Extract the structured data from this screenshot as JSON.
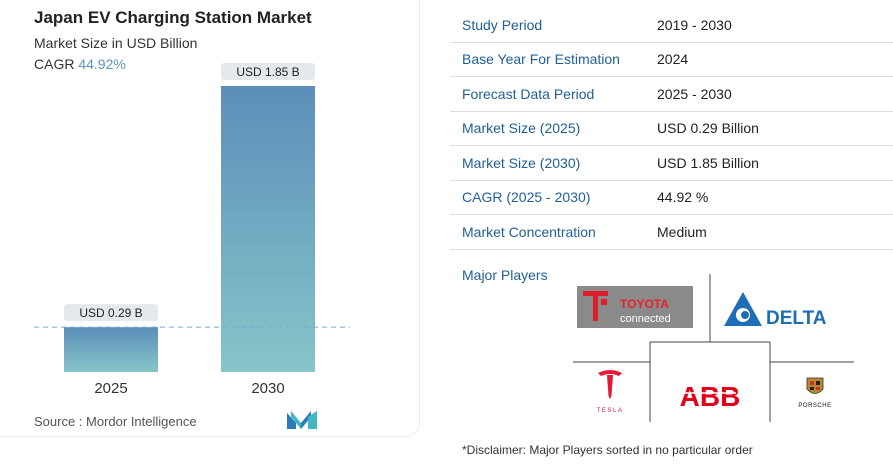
{
  "chart_data": {
    "type": "bar",
    "title": "Japan EV Charging Station Market",
    "subtitle": "Market Size in USD Billion",
    "cagr_label": "CAGR",
    "cagr_value": "44.92%",
    "categories": [
      "2025",
      "2030"
    ],
    "values": [
      0.29,
      1.85
    ],
    "data_labels": [
      "USD 0.29 B",
      "USD 1.85 B"
    ],
    "ylim": [
      0,
      1.85
    ],
    "reference_line_value": 0.29,
    "colors": {
      "bar_top": "#5b8fba",
      "bar_bottom": "#86c5c9",
      "label_bg": "#e4e9ed",
      "dash": "#7fa8cc"
    }
  },
  "source": "Source :  Mordor Intelligence",
  "stats": [
    {
      "label": "Study Period",
      "value": "2019 - 2030"
    },
    {
      "label": "Base Year For Estimation",
      "value": "2024"
    },
    {
      "label": "Forecast Data Period",
      "value": "2025 - 2030"
    },
    {
      "label": "Market Size (2025)",
      "value": "USD 0.29 Billion"
    },
    {
      "label": "Market Size (2030)",
      "value": "USD 1.85 Billion"
    },
    {
      "label": "CAGR (2025 - 2030)",
      "value": "44.92 %"
    },
    {
      "label": "Market Concentration",
      "value": "Medium"
    }
  ],
  "players": {
    "title": "Major Players",
    "logos": [
      {
        "icon": "toyota-connected-logo",
        "text": [
          "TOYOTA",
          "connected"
        ]
      },
      {
        "icon": "delta-logo",
        "text": "DELTA"
      },
      {
        "icon": "tesla-logo",
        "text": "TESLA"
      },
      {
        "icon": "abb-logo",
        "text": "ABB"
      },
      {
        "icon": "porsche-logo",
        "text": "PORSCHE"
      }
    ]
  },
  "disclaimer": "*Disclaimer: Major Players sorted in no particular order"
}
